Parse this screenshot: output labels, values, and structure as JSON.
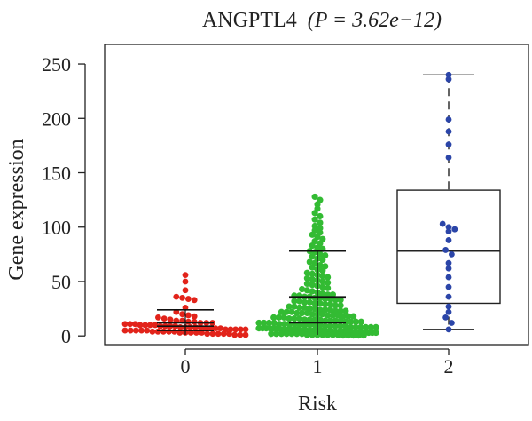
{
  "chart_data": {
    "type": "box",
    "title_gene": "ANGPTL4",
    "title_stat": "(P = 3.62e−12)",
    "xlabel": "Risk",
    "ylabel": "Gene expression",
    "categories": [
      "0",
      "1",
      "2"
    ],
    "yticks": [
      "0",
      "50",
      "100",
      "150",
      "200",
      "250"
    ],
    "ytick_values": [
      0,
      50,
      100,
      150,
      200,
      250
    ],
    "ylim": [
      -8,
      268
    ],
    "colors": {
      "0": "#e2231a",
      "1": "#33bb33",
      "2": "#2b45a8"
    },
    "groups": [
      {
        "name": "0",
        "q1": 5,
        "median": 9,
        "q3": 12,
        "whisker_low": 1,
        "whisker_high": 24,
        "box_style": "crossbar",
        "points": [
          56,
          50,
          42,
          36,
          35,
          34,
          33,
          26,
          22,
          20,
          19,
          18,
          17,
          16,
          15,
          14,
          14,
          13,
          13,
          12,
          12,
          12,
          11,
          11,
          11,
          10,
          10,
          10,
          10,
          9,
          9,
          9,
          9,
          8,
          8,
          8,
          8,
          8,
          7,
          7,
          7,
          7,
          6,
          6,
          6,
          6,
          6,
          5,
          5,
          5,
          5,
          5,
          4,
          4,
          4,
          4,
          4,
          3,
          3,
          3,
          3,
          3,
          2,
          2,
          2,
          2,
          2,
          1,
          1,
          1
        ]
      },
      {
        "name": "1",
        "q1": 12,
        "median": 35,
        "q3": 36,
        "whisker_low": 1,
        "whisker_high": 78,
        "box_style": "crossbar",
        "points": [
          128,
          125,
          121,
          117,
          113,
          110,
          107,
          104,
          101,
          99,
          97,
          95,
          93,
          91,
          89,
          87,
          85,
          83,
          81,
          80,
          78,
          77,
          75,
          74,
          73,
          71,
          70,
          68,
          67,
          65,
          64,
          63,
          61,
          60,
          58,
          57,
          56,
          55,
          54,
          53,
          52,
          51,
          50,
          49,
          48,
          47,
          46,
          45,
          44,
          43,
          42,
          41,
          40,
          39,
          38,
          38,
          37,
          37,
          36,
          36,
          35,
          35,
          34,
          34,
          33,
          33,
          32,
          32,
          31,
          31,
          30,
          30,
          29,
          29,
          28,
          28,
          27,
          27,
          26,
          26,
          25,
          25,
          24,
          24,
          24,
          23,
          23,
          23,
          22,
          22,
          22,
          21,
          21,
          21,
          20,
          20,
          20,
          19,
          19,
          19,
          18,
          18,
          18,
          17,
          17,
          17,
          16,
          16,
          16,
          15,
          15,
          15,
          15,
          14,
          14,
          14,
          14,
          13,
          13,
          13,
          13,
          12,
          12,
          12,
          12,
          11,
          11,
          11,
          11,
          10,
          10,
          10,
          10,
          10,
          9,
          9,
          9,
          9,
          9,
          8,
          8,
          8,
          8,
          8,
          8,
          7,
          7,
          7,
          7,
          7,
          7,
          6,
          6,
          6,
          6,
          6,
          6,
          5,
          5,
          5,
          5,
          5,
          5,
          5,
          4,
          4,
          4,
          4,
          4,
          4,
          4,
          3,
          3,
          3,
          3,
          3,
          3,
          3,
          2,
          2,
          2,
          2,
          2,
          2,
          2,
          1,
          1,
          1,
          1,
          1,
          1,
          1,
          0.5,
          0.5,
          0.5,
          0.5,
          0.5
        ]
      },
      {
        "name": "2",
        "q1": 30,
        "median": 78,
        "q3": 134,
        "whisker_low": 6,
        "whisker_high": 240,
        "box_style": "box",
        "points": [
          240,
          236,
          199,
          188,
          176,
          164,
          103,
          100,
          98,
          96,
          88,
          79,
          75,
          67,
          62,
          54,
          45,
          36,
          27,
          22,
          17,
          12,
          6
        ]
      }
    ]
  }
}
